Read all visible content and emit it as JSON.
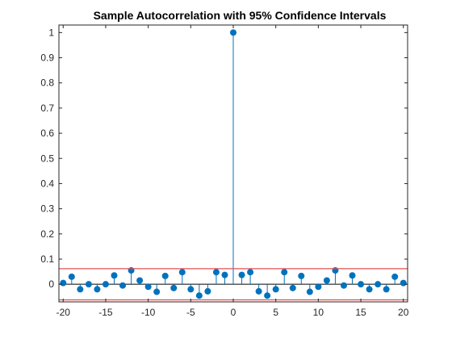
{
  "chart_data": {
    "type": "stem",
    "title": "Sample Autocorrelation with 95% Confidence Intervals",
    "xlabel": "",
    "ylabel": "",
    "xlim": [
      -20.5,
      20.5
    ],
    "ylim": [
      -0.07,
      1.03
    ],
    "xticks": [
      -20,
      -15,
      -10,
      -5,
      0,
      5,
      10,
      15,
      20
    ],
    "xtick_labels": [
      "-20",
      "-15",
      "-10",
      "-5",
      "0",
      "5",
      "10",
      "15",
      "20"
    ],
    "yticks": [
      0,
      0.1,
      0.2,
      0.3,
      0.4,
      0.5,
      0.6,
      0.7,
      0.8,
      0.9,
      1
    ],
    "ytick_labels": [
      "0",
      "0.1",
      "0.2",
      "0.3",
      "0.4",
      "0.5",
      "0.6",
      "0.7",
      "0.8",
      "0.9",
      "1"
    ],
    "grid": false,
    "x": [
      -20,
      -19,
      -18,
      -17,
      -16,
      -15,
      -14,
      -13,
      -12,
      -11,
      -10,
      -9,
      -8,
      -7,
      -6,
      -5,
      -4,
      -3,
      -2,
      -1,
      0,
      1,
      2,
      3,
      4,
      5,
      6,
      7,
      8,
      9,
      10,
      11,
      12,
      13,
      14,
      15,
      16,
      17,
      18,
      19,
      20
    ],
    "values": [
      0.005,
      0.03,
      -0.02,
      0.0,
      -0.02,
      0.0,
      0.035,
      -0.005,
      0.055,
      0.015,
      -0.01,
      -0.03,
      0.033,
      -0.015,
      0.048,
      -0.02,
      -0.045,
      -0.028,
      0.048,
      0.037,
      1.0,
      0.037,
      0.048,
      -0.028,
      -0.045,
      -0.02,
      0.048,
      -0.015,
      0.033,
      -0.03,
      -0.01,
      0.015,
      0.055,
      -0.005,
      0.035,
      0.0,
      -0.02,
      0.0,
      -0.02,
      0.03,
      0.005
    ],
    "confidence_bounds": [
      0.062,
      -0.062
    ],
    "colors": {
      "stem": "#0072BD",
      "bound": "#E05050",
      "axis": "#262626"
    }
  }
}
